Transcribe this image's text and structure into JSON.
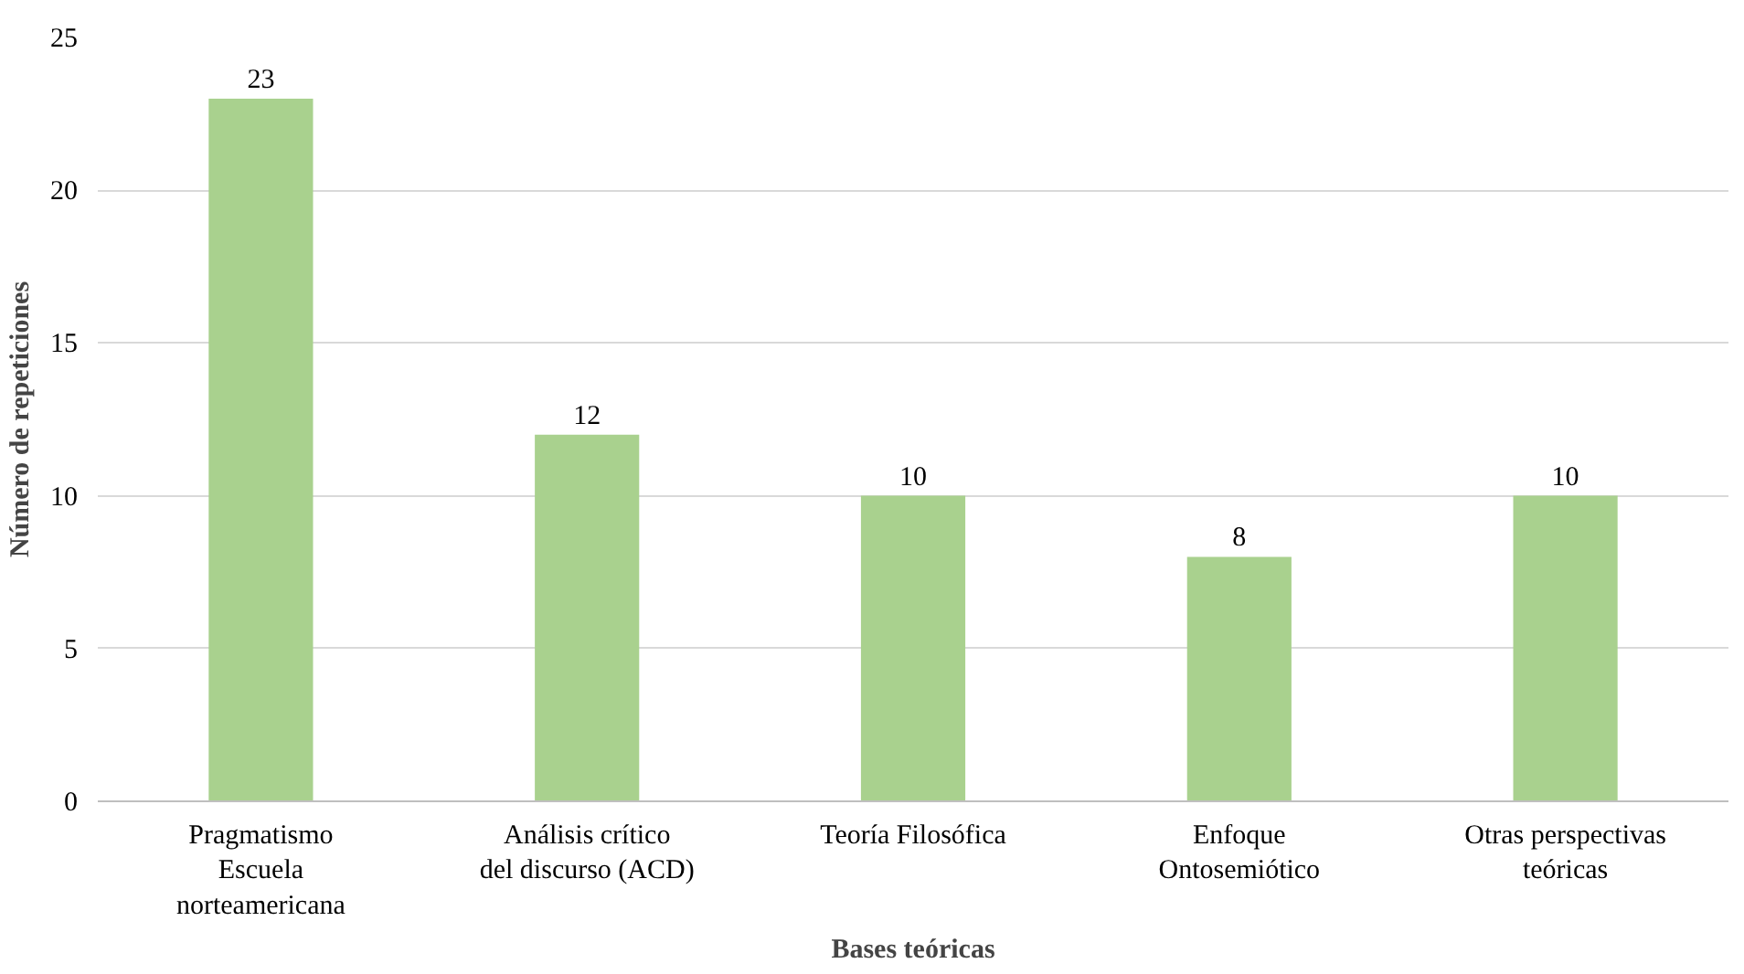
{
  "chart_data": {
    "type": "bar",
    "xlabel": "Bases teóricas",
    "ylabel": "Número de repeticiones",
    "categories": [
      "Pragmatismo\nEscuela\nnorteamericana",
      "Análisis crítico\ndel discurso (ACD)",
      "Teoría Filosófica",
      "Enfoque\nOntosemiótico",
      "Otras perspectivas\nteóricas"
    ],
    "values": [
      23,
      12,
      10,
      8,
      10
    ],
    "color": "#a9d18e",
    "data_labels": true,
    "grid": "y",
    "ylim": [
      0,
      25
    ],
    "yticks": [
      0,
      5,
      10,
      15,
      20,
      25
    ]
  }
}
